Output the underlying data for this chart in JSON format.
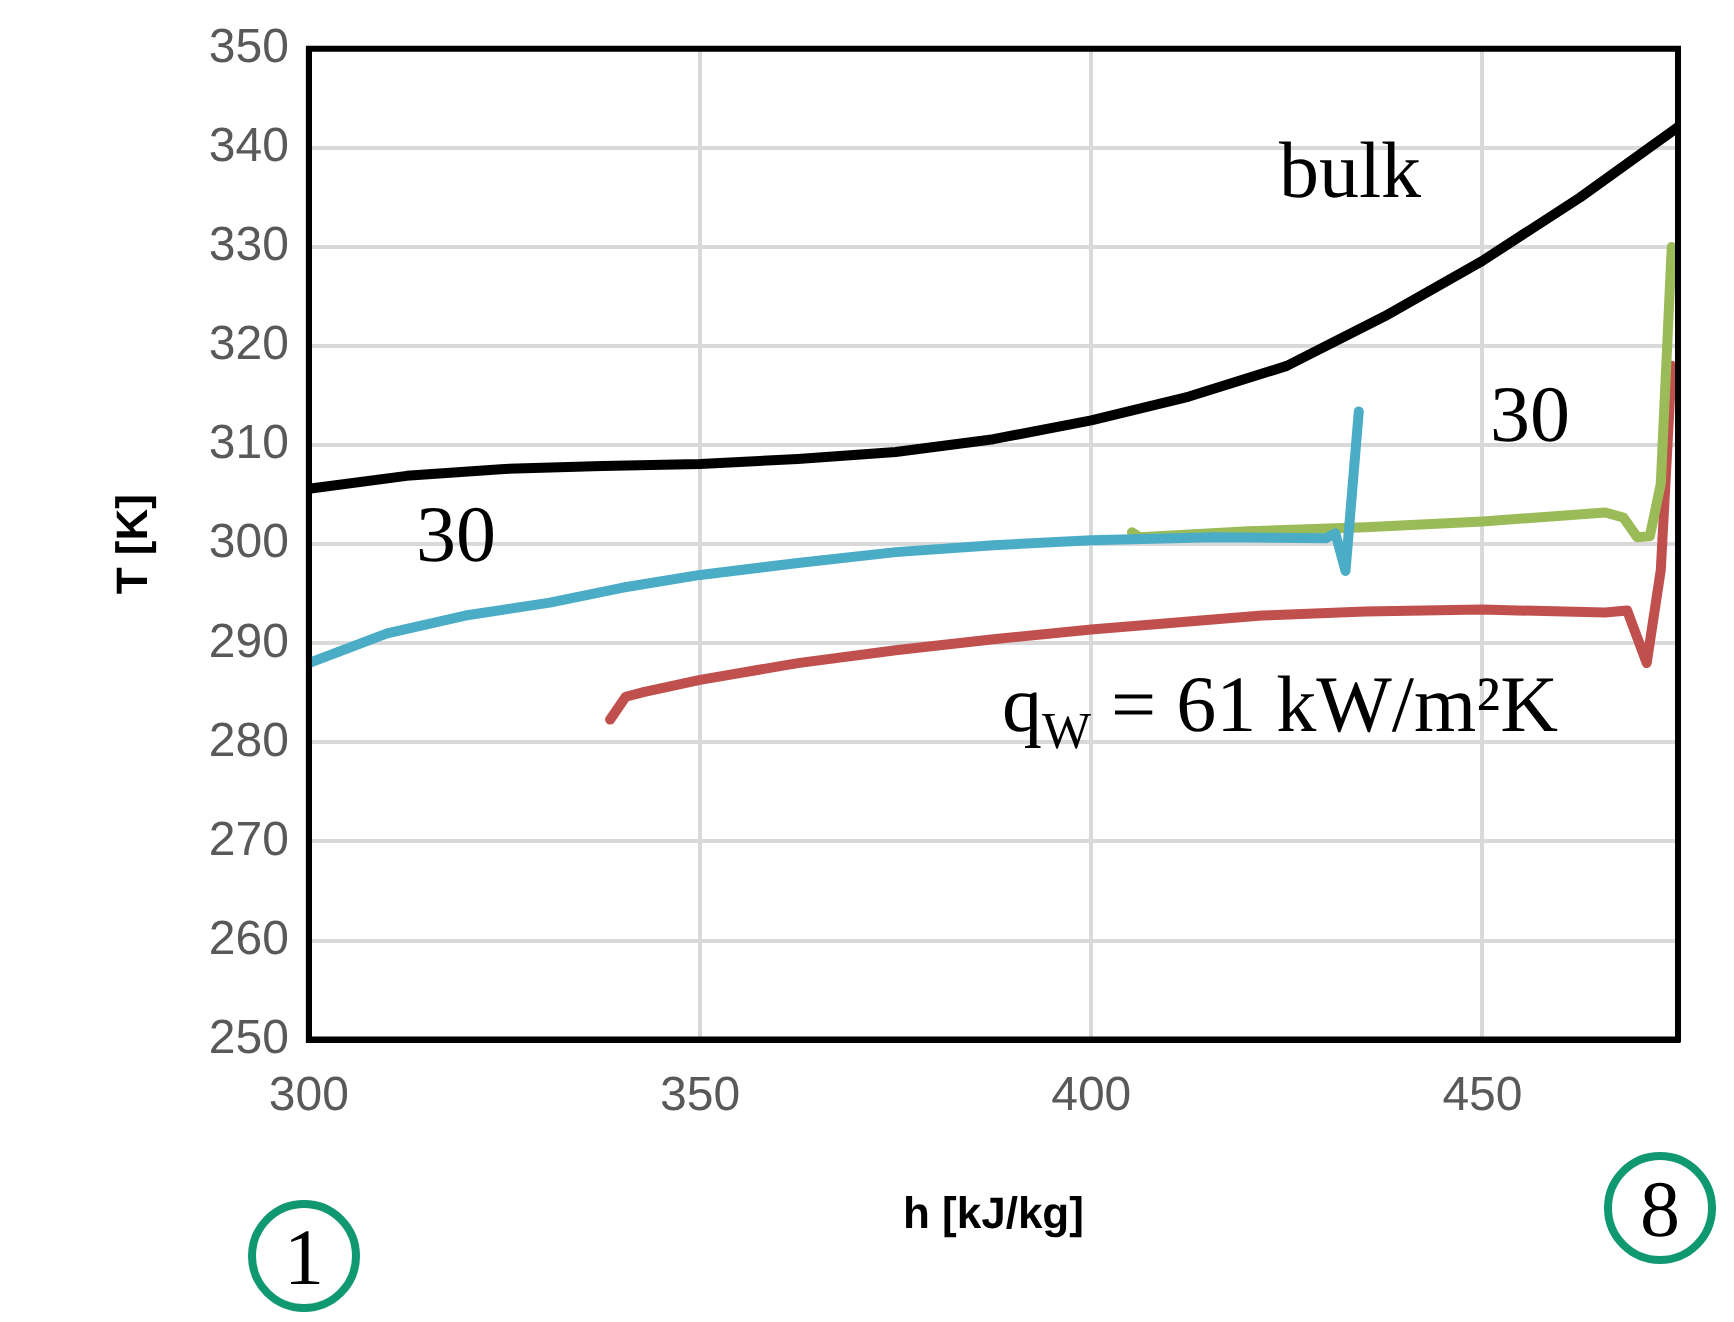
{
  "chart_data": {
    "type": "line",
    "xlabel": "h [kJ/kg]",
    "ylabel": "T [K]",
    "xlim": [
      300,
      475
    ],
    "xticks": [
      300,
      350,
      400,
      450
    ],
    "ylim": [
      250,
      350
    ],
    "yticks": [
      250,
      260,
      270,
      280,
      290,
      300,
      310,
      320,
      330,
      340,
      350
    ],
    "grid": true,
    "legend": false,
    "marker": "none",
    "line_style": "solid",
    "series": [
      {
        "name": "bulk",
        "color": "#000000",
        "x": [
          300,
          312.5,
          325,
          337.5,
          350,
          362.5,
          375,
          387.5,
          400,
          412.5,
          425,
          437.5,
          450,
          462.5,
          475
        ],
        "values": [
          305.6,
          306.9,
          307.6,
          307.9,
          308.1,
          308.6,
          309.3,
          310.6,
          312.5,
          314.9,
          318,
          323,
          328.6,
          335,
          342.1
        ]
      },
      {
        "name": "30",
        "color": "#4bacc6",
        "x": [
          300,
          310,
          320,
          330.8,
          340,
          350,
          362.5,
          375,
          387.5,
          400,
          415.8,
          430,
          431.2,
          432.5,
          434.2
        ],
        "values": [
          288,
          291,
          292.8,
          294.1,
          295.6,
          296.9,
          298.1,
          299.2,
          299.9,
          300.4,
          300.7,
          300.6,
          301.1,
          297.3,
          313.4
        ]
      },
      {
        "name": "30",
        "color": "#9bbb59",
        "x": [
          405.2,
          406.2,
          420,
          435,
          450,
          465.7,
          468,
          469.8,
          471.4,
          472.8,
          474.2
        ],
        "values": [
          301.2,
          300.7,
          301.3,
          301.7,
          302.3,
          303.2,
          302.7,
          300.7,
          300.8,
          306.1,
          330
        ]
      },
      {
        "name": "q$_{W}$ = 61 kW/m²K",
        "color": "#c0504d",
        "x": [
          338.5,
          340.5,
          342.9,
          350,
          362.5,
          375,
          387.5,
          400,
          421.8,
          435,
          450,
          465.7,
          468.5,
          471,
          472.8,
          474.2
        ],
        "values": [
          282.3,
          284.6,
          285.1,
          286.3,
          288,
          289.3,
          290.4,
          291.4,
          292.8,
          293.2,
          293.4,
          293.1,
          293.3,
          288,
          297.4,
          318
        ]
      }
    ],
    "annotations": [
      "1",
      "8"
    ]
  }
}
